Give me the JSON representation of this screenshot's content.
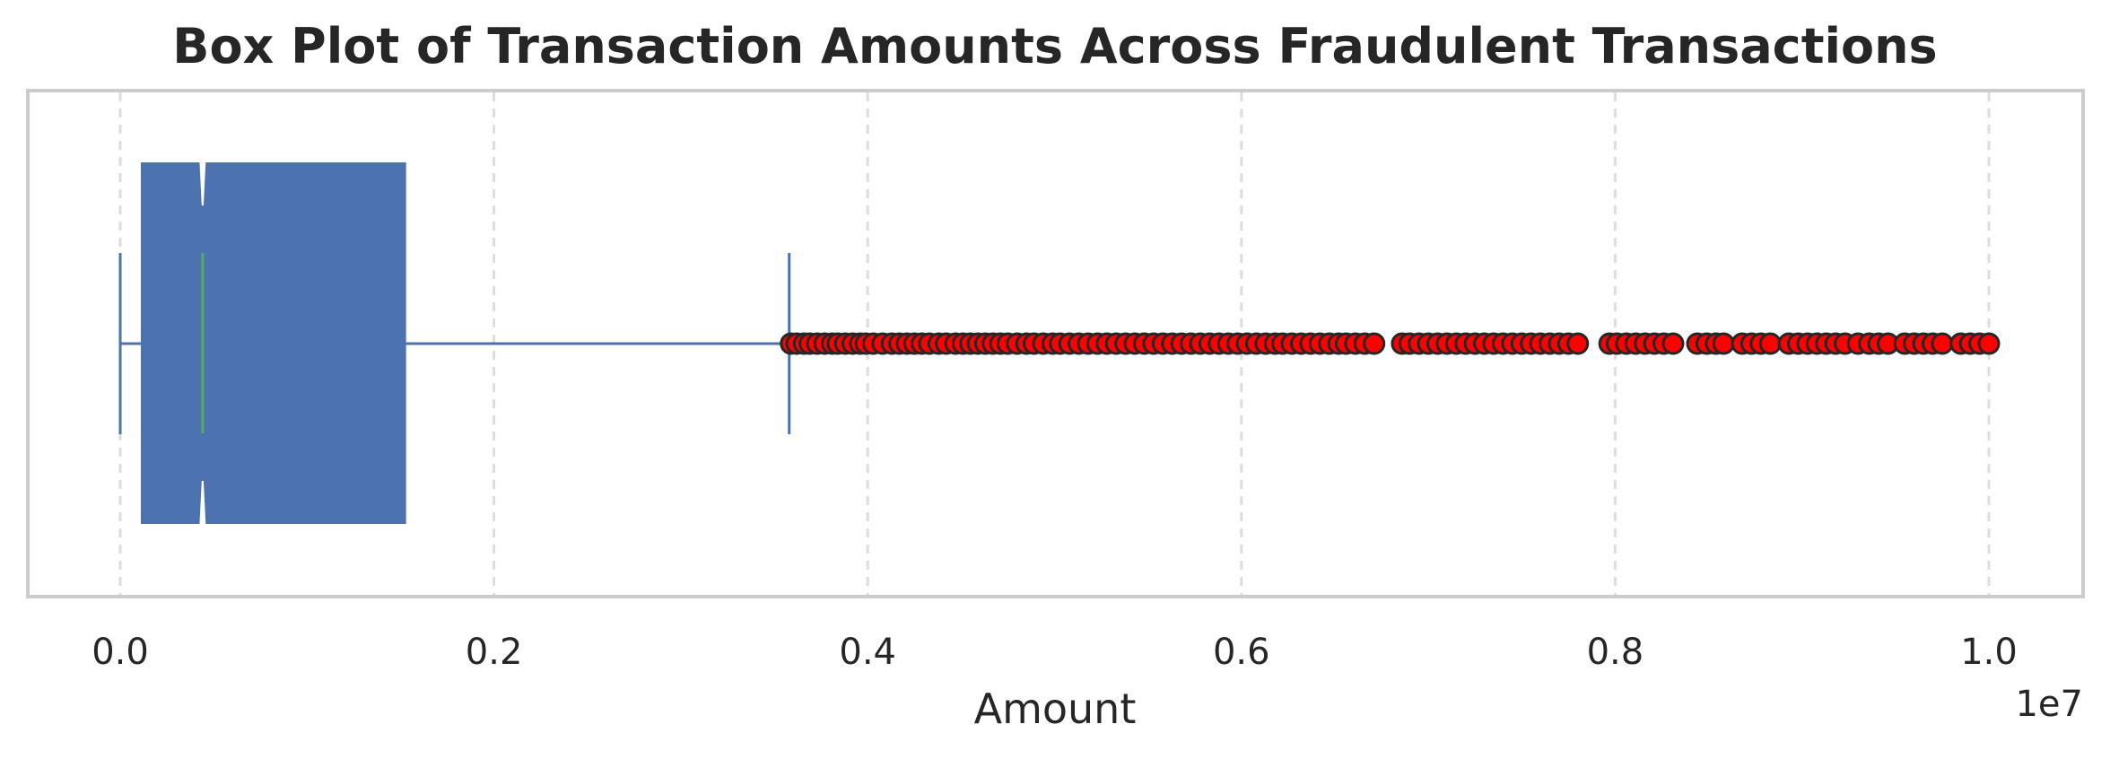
{
  "chart_data": {
    "type": "box",
    "orientation": "horizontal",
    "title": "Box Plot of Transaction Amounts Across Fraudulent Transactions",
    "xlabel": "Amount",
    "ylabel": "",
    "x_offset_label": "1e7",
    "x_scale_factor": 10000000,
    "xlim": [
      -0.05,
      1.05
    ],
    "xticks": [
      0.0,
      0.2,
      0.4,
      0.6,
      0.8,
      1.0
    ],
    "xtick_labels": [
      "0.0",
      "0.2",
      "0.4",
      "0.6",
      "0.8",
      "1.0"
    ],
    "grid": "x, dashed",
    "notch": true,
    "box": {
      "whisker_low": 0.0,
      "q1": 0.0115,
      "median": 0.0441,
      "q3": 0.1525,
      "whisker_high": 0.358,
      "notch_low": 0.042,
      "notch_high": 0.0462
    },
    "outliers": [
      0.359,
      0.362,
      0.366,
      0.369,
      0.373,
      0.377,
      0.381,
      0.384,
      0.388,
      0.392,
      0.396,
      0.399,
      0.403,
      0.408,
      0.413,
      0.417,
      0.421,
      0.425,
      0.429,
      0.433,
      0.438,
      0.442,
      0.447,
      0.451,
      0.455,
      0.459,
      0.463,
      0.467,
      0.471,
      0.475,
      0.48,
      0.485,
      0.489,
      0.494,
      0.499,
      0.503,
      0.508,
      0.513,
      0.518,
      0.523,
      0.528,
      0.533,
      0.538,
      0.543,
      0.548,
      0.553,
      0.558,
      0.563,
      0.568,
      0.573,
      0.578,
      0.583,
      0.588,
      0.593,
      0.598,
      0.603,
      0.608,
      0.613,
      0.618,
      0.622,
      0.627,
      0.632,
      0.637,
      0.642,
      0.647,
      0.652,
      0.656,
      0.661,
      0.666,
      0.671,
      0.686,
      0.69,
      0.695,
      0.7,
      0.705,
      0.71,
      0.715,
      0.72,
      0.725,
      0.73,
      0.735,
      0.74,
      0.745,
      0.75,
      0.755,
      0.76,
      0.765,
      0.77,
      0.775,
      0.78,
      0.797,
      0.801,
      0.806,
      0.811,
      0.816,
      0.821,
      0.826,
      0.831,
      0.844,
      0.849,
      0.854,
      0.858,
      0.868,
      0.873,
      0.878,
      0.883,
      0.893,
      0.898,
      0.903,
      0.908,
      0.913,
      0.918,
      0.923,
      0.93,
      0.936,
      0.941,
      0.946,
      0.955,
      0.96,
      0.965,
      0.97,
      0.975,
      0.985,
      0.99,
      0.995,
      1.0
    ],
    "colors": {
      "box_fill": "#4c72b0",
      "box_edge": "#4c72b0",
      "whisker": "#4c72b0",
      "median": "#55a868",
      "outlier_fill": "#ff0000",
      "outlier_edge": "#262626",
      "grid": "#dddddd",
      "frame": "#cccccc"
    }
  }
}
